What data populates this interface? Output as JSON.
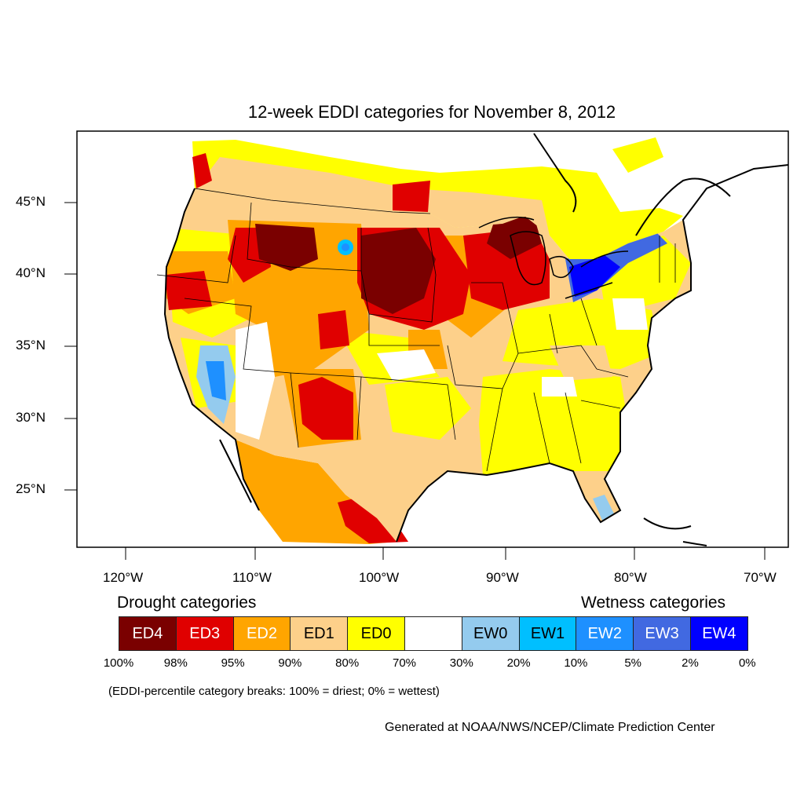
{
  "title": "12-week EDDI categories for November 8, 2012",
  "lat_labels": [
    "45°N",
    "40°N",
    "35°N",
    "30°N",
    "25°N"
  ],
  "lon_labels": [
    "120°W",
    "110°W",
    "100°W",
    "90°W",
    "80°W",
    "70°W"
  ],
  "legend": {
    "drought_heading": "Drought categories",
    "wetness_heading": "Wetness categories",
    "categories": [
      {
        "label": "ED4",
        "color": "#7a0000",
        "text_color": "#ffffff"
      },
      {
        "label": "ED3",
        "color": "#e00000",
        "text_color": "#ffffff"
      },
      {
        "label": "ED2",
        "color": "#ffa500",
        "text_color": "#ffffff"
      },
      {
        "label": "ED1",
        "color": "#fdd08a",
        "text_color": "#000000"
      },
      {
        "label": "ED0",
        "color": "#ffff00",
        "text_color": "#000000"
      },
      {
        "label": "",
        "color": "#ffffff",
        "text_color": "#000000"
      },
      {
        "label": "EW0",
        "color": "#94cbee",
        "text_color": "#000000"
      },
      {
        "label": "EW1",
        "color": "#00bfff",
        "text_color": "#000000"
      },
      {
        "label": "EW2",
        "color": "#1e90ff",
        "text_color": "#ffffff"
      },
      {
        "label": "EW3",
        "color": "#4169e1",
        "text_color": "#ffffff"
      },
      {
        "label": "EW4",
        "color": "#0000ff",
        "text_color": "#ffffff"
      }
    ],
    "percentiles": [
      "100%",
      "98%",
      "95%",
      "90%",
      "80%",
      "70%",
      "30%",
      "20%",
      "10%",
      "5%",
      "2%",
      "0%"
    ]
  },
  "note": "(EDDI-percentile category breaks: 100% = driest; 0% = wettest)",
  "credit": "Generated at NOAA/NWS/NCEP/Climate Prediction Center"
}
